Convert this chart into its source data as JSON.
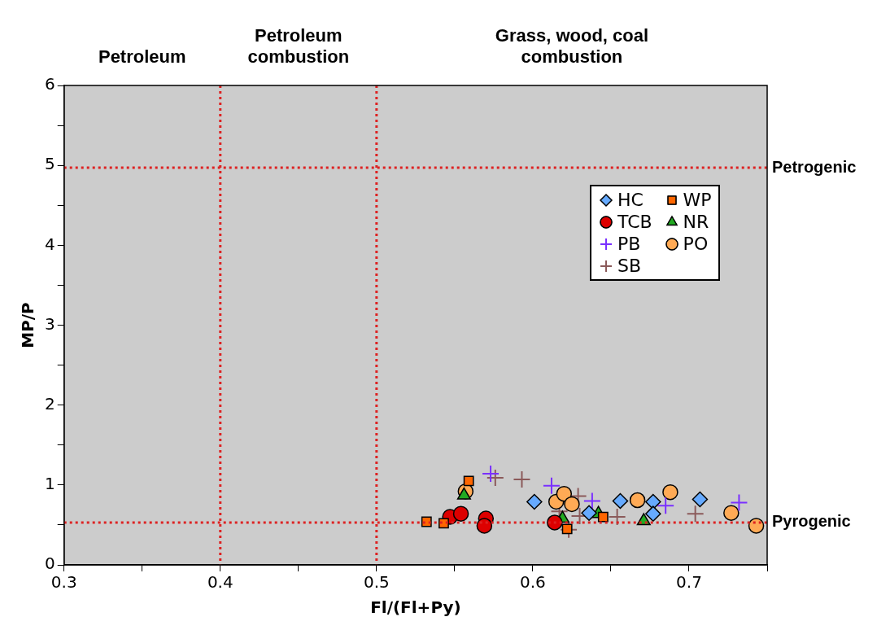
{
  "chart_data": {
    "type": "scatter",
    "xlabel": "Fl/(Fl+Py)",
    "ylabel": "MP/P",
    "xlim": [
      0.3,
      0.75
    ],
    "xticks": [
      0.3,
      {
        "value": 0.35,
        "label": null
      },
      0.4,
      {
        "value": 0.45,
        "label": null
      },
      0.5,
      {
        "value": 0.55,
        "label": null
      },
      0.6,
      {
        "value": 0.65,
        "label": null
      },
      0.7,
      {
        "value": 0.75,
        "label": null
      }
    ],
    "ylim": [
      0,
      6
    ],
    "yticks": [
      0,
      {
        "value": 0.5,
        "label": null
      },
      1,
      {
        "value": 1.5,
        "label": null
      },
      2,
      {
        "value": 2.5,
        "label": null
      },
      3,
      {
        "value": 3.5,
        "label": null
      },
      4,
      {
        "value": 4.5,
        "label": null
      },
      5,
      {
        "value": 5.5,
        "label": null
      },
      6
    ],
    "grid": false,
    "legend": "right",
    "series": [
      {
        "name": "HC",
        "color": "#66aaff",
        "marker": "diamond",
        "x": [
          0.601,
          0.656,
          0.677,
          0.677,
          0.707,
          0.636
        ],
        "values": [
          0.79,
          0.8,
          0.79,
          0.64,
          0.82,
          0.65
        ]
      },
      {
        "name": "WP",
        "color": "#ff6600",
        "marker": "square",
        "x": [
          0.559,
          0.532,
          0.543,
          0.622,
          0.645
        ],
        "values": [
          1.05,
          0.54,
          0.52,
          0.45,
          0.6
        ]
      },
      {
        "name": "TCB",
        "color": "#dd0000",
        "marker": "circle",
        "x": [
          0.547,
          0.554,
          0.57,
          0.569,
          0.614
        ],
        "values": [
          0.6,
          0.64,
          0.58,
          0.49,
          0.53
        ]
      },
      {
        "name": "NR",
        "color": "#22aa22",
        "marker": "triangle",
        "x": [
          0.556,
          0.619,
          0.642,
          0.671
        ],
        "values": [
          0.87,
          0.58,
          0.64,
          0.55
        ]
      },
      {
        "name": "PB",
        "color": "#7a30ff",
        "marker": "cross",
        "x": [
          0.573,
          0.612,
          0.638,
          0.685,
          0.732
        ],
        "values": [
          1.14,
          0.99,
          0.8,
          0.74,
          0.78
        ]
      },
      {
        "name": "PO",
        "color": "#ffaa55",
        "marker": "circle",
        "x": [
          0.557,
          0.615,
          0.62,
          0.625,
          0.667,
          0.688,
          0.727,
          0.743
        ],
        "values": [
          0.92,
          0.79,
          0.89,
          0.76,
          0.81,
          0.91,
          0.65,
          0.49
        ]
      },
      {
        "name": "SB",
        "color": "#8b5a5a",
        "marker": "cross",
        "x": [
          0.576,
          0.593,
          0.629,
          0.617,
          0.63,
          0.623,
          0.654,
          0.704
        ],
        "values": [
          1.09,
          1.07,
          0.86,
          0.67,
          0.61,
          0.44,
          0.6,
          0.64
        ]
      }
    ],
    "ref_lines": [
      {
        "axis": "x",
        "value": 0.4,
        "color": "#dd2222",
        "line_style": "dotted"
      },
      {
        "axis": "x",
        "value": 0.5,
        "color": "#dd2222",
        "line_style": "dotted"
      },
      {
        "axis": "y",
        "value": 4.97,
        "label": "Petrogenic",
        "color": "#dd2222",
        "line_style": "dotted"
      },
      {
        "axis": "y",
        "value": 0.53,
        "label": "Pyrogenic",
        "color": "#dd2222",
        "line_style": "dotted"
      }
    ],
    "annotations": [
      "Petroleum",
      "Petroleum combustion",
      "Grass, wood, coal combustion"
    ]
  }
}
